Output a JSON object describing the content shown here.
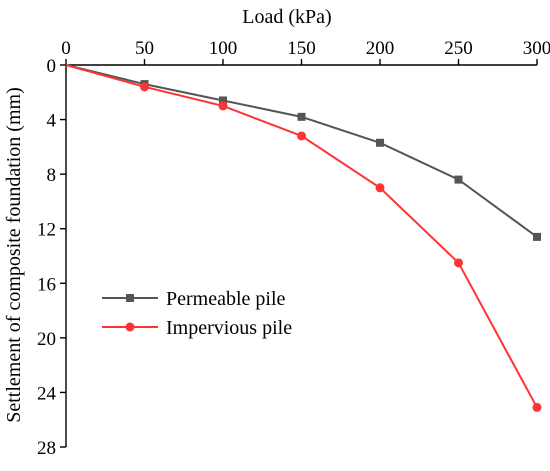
{
  "chart_data": {
    "type": "line",
    "title": "",
    "xlabel": "Load (kPa)",
    "ylabel": "Settlement of composite foundation (mm)",
    "x_axis_position": "top",
    "y_axis_inverted": true,
    "xlim": [
      0,
      300
    ],
    "ylim": [
      0,
      28
    ],
    "xticks": [
      0,
      50,
      100,
      150,
      200,
      250,
      300
    ],
    "yticks": [
      0,
      4,
      8,
      12,
      16,
      20,
      24,
      28
    ],
    "grid": false,
    "legend_position": "lower-left",
    "series": [
      {
        "name": "Permeable pile",
        "color": "#555555",
        "marker": "square",
        "x": [
          0,
          50,
          100,
          150,
          200,
          250,
          300
        ],
        "y": [
          0,
          1.4,
          2.6,
          3.8,
          5.7,
          8.4,
          12.6
        ]
      },
      {
        "name": "Impervious pile",
        "color": "#ff3333",
        "marker": "circle",
        "x": [
          0,
          50,
          100,
          150,
          200,
          250,
          300
        ],
        "y": [
          0,
          1.6,
          3.0,
          5.2,
          9.0,
          14.5,
          25.1
        ]
      }
    ]
  }
}
